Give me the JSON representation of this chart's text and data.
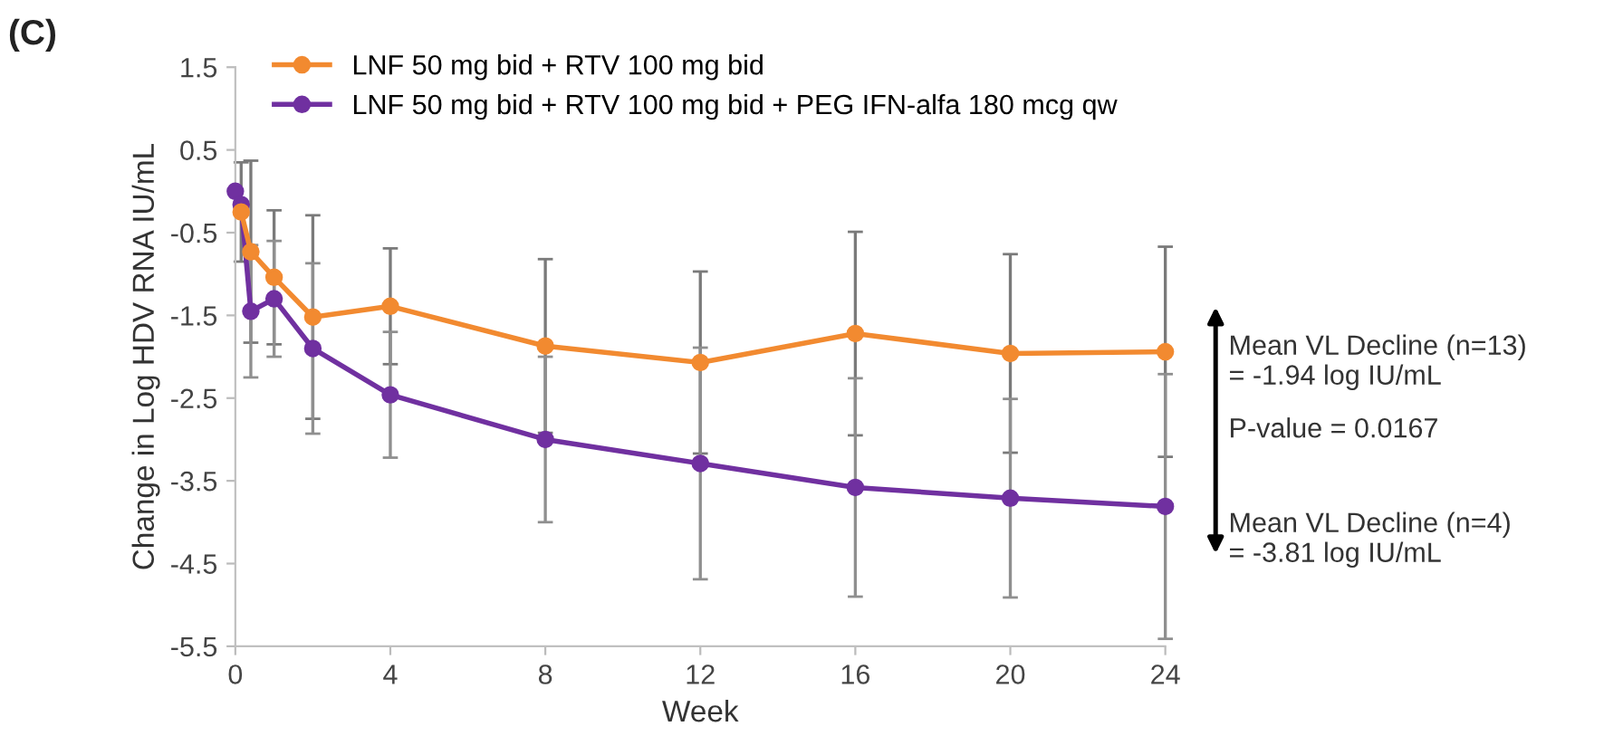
{
  "chart_data": {
    "type": "line",
    "xlabel": "Week",
    "ylabel": "Change in Log HDV RNA IU/mL",
    "series": [
      {
        "name": "LNF 50 mg bid + RTV 100 mg bid",
        "color": "#f28a30",
        "x": [
          0.15,
          0.4,
          1,
          2,
          4,
          8,
          12,
          16,
          20,
          24
        ],
        "values": [
          -0.25,
          -0.73,
          -1.04,
          -1.52,
          -1.39,
          -1.87,
          -2.07,
          -1.72,
          -1.96,
          -1.94
        ],
        "errors": [
          0.6,
          1.1,
          0.81,
          1.23,
          0.7,
          1.05,
          1.1,
          1.23,
          1.2,
          1.27
        ]
      },
      {
        "name": "LNF 50 mg bid + RTV 100 mg bid + PEG IFN-alfa 180 mcg qw",
        "color": "#7030a0",
        "x": [
          0,
          0.15,
          0.4,
          1,
          2,
          4,
          8,
          12,
          16,
          20,
          24
        ],
        "values": [
          0.0,
          -0.16,
          -1.45,
          -1.3,
          -1.9,
          -2.46,
          -3.0,
          -3.29,
          -3.58,
          -3.71,
          -3.81
        ],
        "errors": [
          null,
          null,
          0.8,
          0.7,
          1.03,
          0.76,
          1.0,
          1.4,
          1.32,
          1.2,
          1.6
        ]
      }
    ],
    "xlim": [
      0,
      24
    ],
    "xticks": [
      0,
      4,
      8,
      12,
      16,
      20,
      24
    ],
    "ylim": [
      -5.5,
      1.5
    ],
    "yticks": [
      1.5,
      0.5,
      -0.5,
      -1.5,
      -2.5,
      -3.5,
      -4.5,
      -5.5
    ],
    "grid": false,
    "legend": "top left",
    "marker": "circle",
    "line_style": "solid",
    "annotations": [
      "(C)",
      "Mean VL Decline (n=13)\n= -1.94 log IU/mL",
      "P-value = 0.0167",
      "Mean VL Decline (n=4)\n= -3.81 log IU/mL"
    ]
  }
}
